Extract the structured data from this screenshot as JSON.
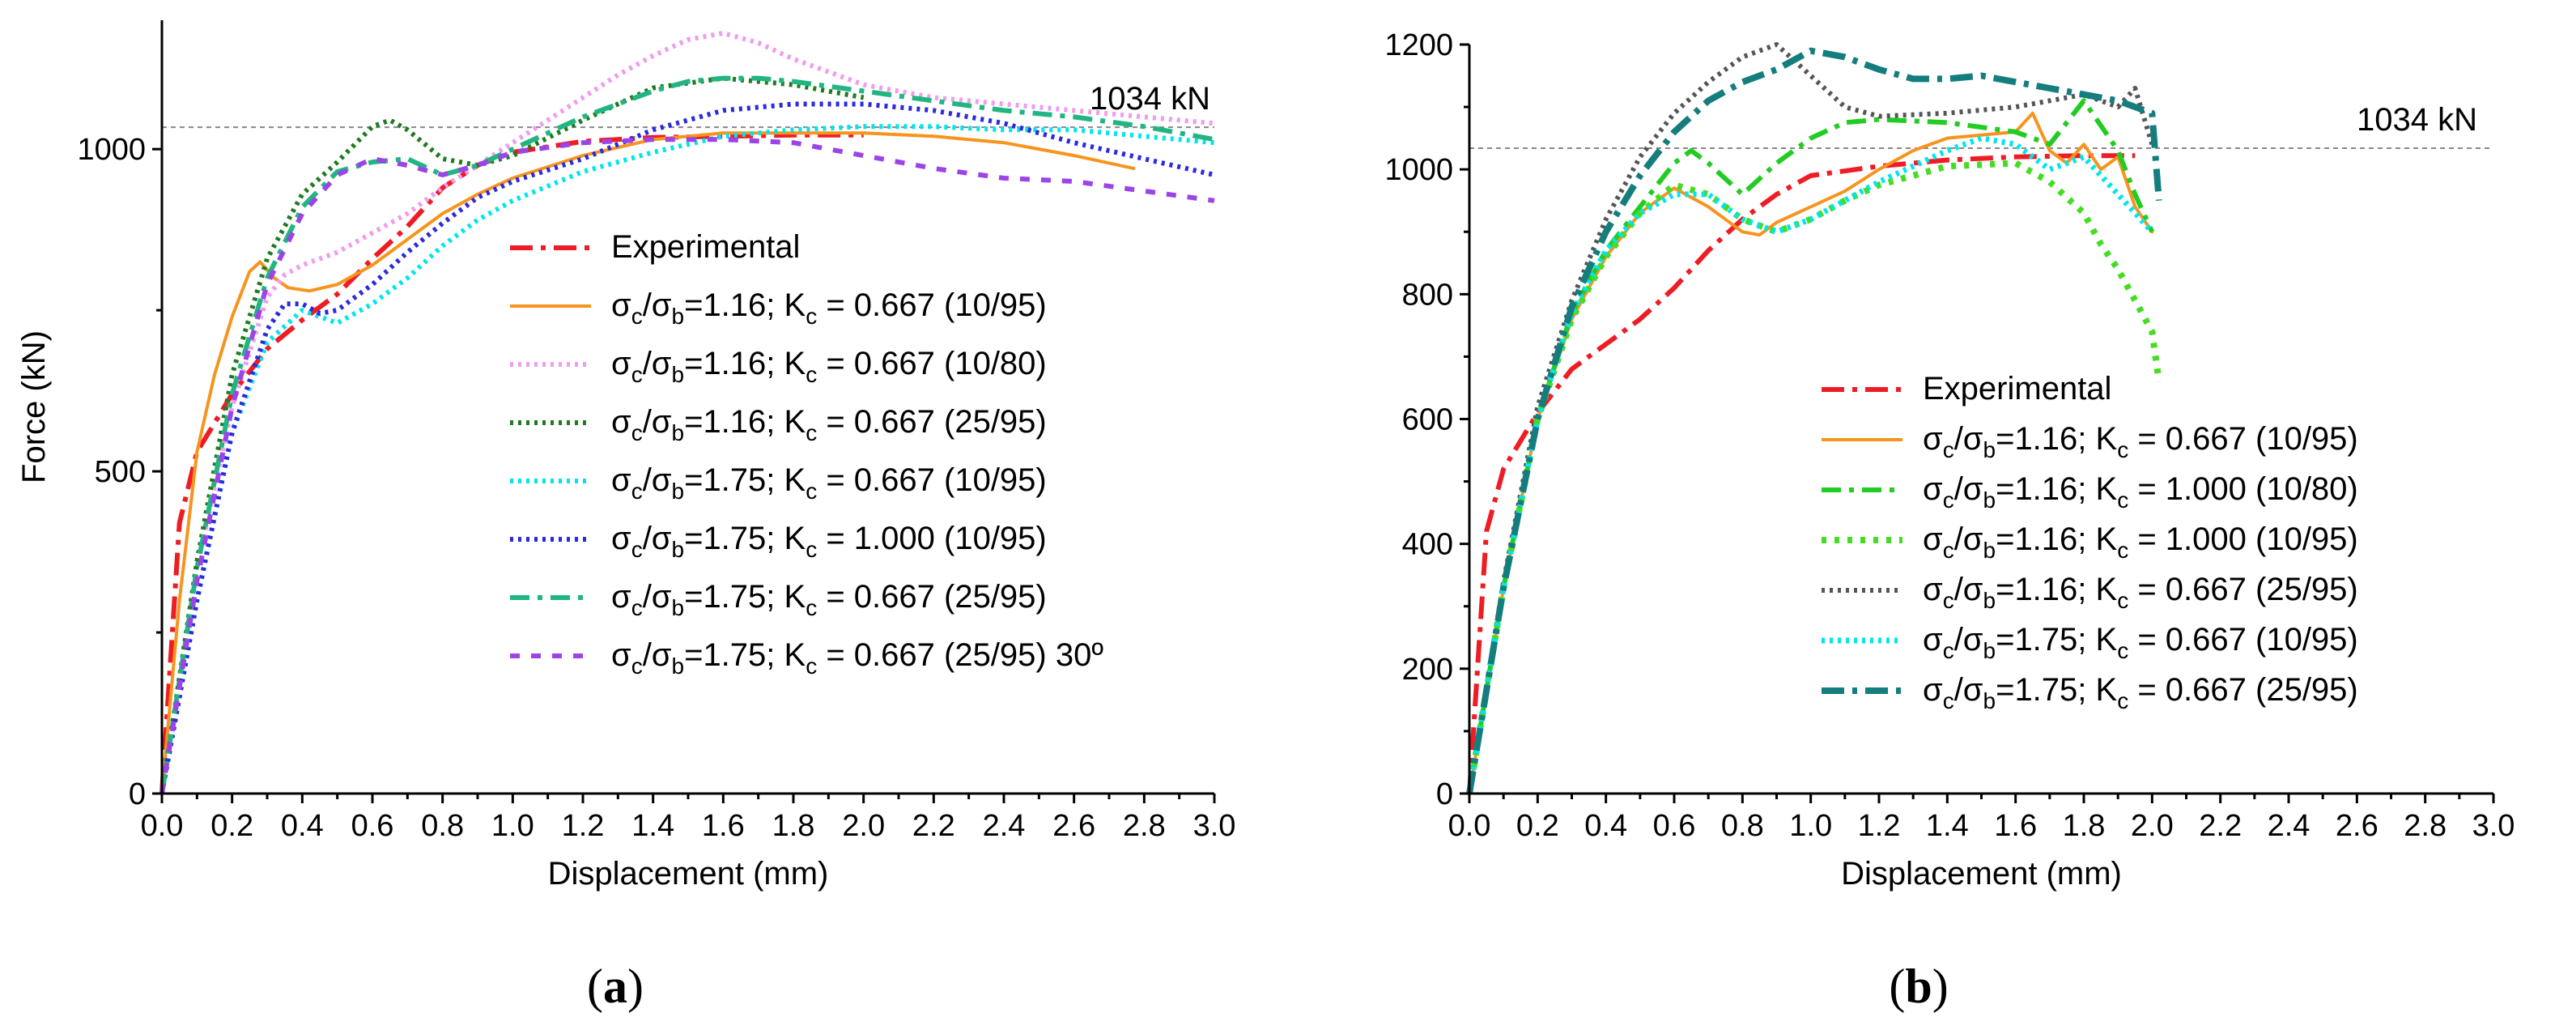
{
  "chart_data": [
    {
      "panel": "a",
      "type": "line",
      "xlabel": "Displacement (mm)",
      "ylabel": "Force (kN)",
      "xlim": [
        0,
        3.0
      ],
      "ylim": [
        0,
        1200
      ],
      "xticks": [
        0.0,
        0.2,
        0.4,
        0.6,
        0.8,
        1.0,
        1.2,
        1.4,
        1.6,
        1.8,
        2.0,
        2.2,
        2.4,
        2.6,
        2.8,
        3.0
      ],
      "xtick_labels": [
        "0.0",
        "0.2",
        "0.4",
        "0.6",
        "0.8",
        "1.0",
        "1.2",
        "1.4",
        "1.6",
        "1.8",
        "2.0",
        "2.2",
        "2.4",
        "2.6",
        "2.8",
        "3.0"
      ],
      "yticks": [
        0,
        500,
        1000
      ],
      "ytick_labels": [
        "0",
        "500",
        "1000"
      ],
      "reference_line": {
        "y": 1034,
        "label": "1034 kN"
      },
      "series": [
        {
          "name": "Experimental",
          "legend": {
            "prefix": "Experimental"
          },
          "color": "#ee1c24",
          "dash": "28,10,6,10",
          "width": 6,
          "x": [
            0,
            0.05,
            0.1,
            0.2,
            0.3,
            0.4,
            0.5,
            0.6,
            0.7,
            0.8,
            0.9,
            1.0,
            1.2,
            1.4,
            1.6,
            1.8,
            2.0
          ],
          "y": [
            0,
            420,
            530,
            620,
            690,
            735,
            775,
            830,
            880,
            940,
            975,
            995,
            1012,
            1018,
            1020,
            1022,
            1022
          ]
        },
        {
          "name": "σc/σb=1.16; Kc = 0.667 (10/95)",
          "legend": {
            "a": "1.16",
            "k": "0.667",
            "suffix": "(10/95)"
          },
          "color": "#f7941d",
          "dash": "",
          "width": 4,
          "x": [
            0,
            0.05,
            0.1,
            0.15,
            0.2,
            0.25,
            0.28,
            0.32,
            0.36,
            0.42,
            0.5,
            0.6,
            0.7,
            0.8,
            0.9,
            1.0,
            1.2,
            1.4,
            1.6,
            1.8,
            2.0,
            2.2,
            2.4,
            2.6,
            2.77
          ],
          "y": [
            0,
            300,
            530,
            650,
            740,
            810,
            825,
            800,
            785,
            780,
            790,
            820,
            860,
            900,
            930,
            955,
            990,
            1015,
            1025,
            1025,
            1025,
            1020,
            1010,
            990,
            970
          ]
        },
        {
          "name": "σc/σb=1.16; Kc = 0.667 (10/80)",
          "legend": {
            "a": "1.16",
            "k": "0.667",
            "suffix": "(10/80)"
          },
          "color": "#f09cf0",
          "dash": "4,6",
          "width": 6,
          "x": [
            0,
            0.1,
            0.2,
            0.3,
            0.35,
            0.4,
            0.5,
            0.6,
            0.7,
            0.8,
            0.9,
            1.0,
            1.1,
            1.2,
            1.3,
            1.4,
            1.5,
            1.6,
            1.7,
            1.8,
            2.0,
            2.2,
            2.4,
            2.6,
            2.8,
            3.0
          ],
          "y": [
            0,
            350,
            600,
            770,
            805,
            820,
            840,
            870,
            900,
            940,
            975,
            1010,
            1045,
            1080,
            1115,
            1145,
            1170,
            1180,
            1165,
            1140,
            1100,
            1080,
            1070,
            1060,
            1050,
            1040
          ]
        },
        {
          "name": "σc/σb=1.16; Kc = 0.667 (25/95)",
          "legend": {
            "a": "1.16",
            "k": "0.667",
            "suffix": "(25/95)"
          },
          "color": "#1e7b1e",
          "dash": "4,6",
          "width": 6,
          "x": [
            0,
            0.1,
            0.2,
            0.3,
            0.4,
            0.5,
            0.6,
            0.65,
            0.7,
            0.8,
            0.9,
            1.0,
            1.2,
            1.4,
            1.6,
            1.8,
            2.0
          ],
          "y": [
            0,
            360,
            650,
            830,
            930,
            980,
            1035,
            1045,
            1030,
            985,
            975,
            990,
            1045,
            1095,
            1110,
            1100,
            1080
          ]
        },
        {
          "name": "σc/σb=1.75; Kc = 0.667 (10/95)",
          "legend": {
            "a": "1.75",
            "k": "0.667",
            "suffix": "(10/95)"
          },
          "color": "#00e5ee",
          "dash": "4,6",
          "width": 6,
          "x": [
            0,
            0.1,
            0.2,
            0.3,
            0.4,
            0.45,
            0.5,
            0.6,
            0.7,
            0.8,
            0.9,
            1.0,
            1.2,
            1.4,
            1.6,
            1.8,
            2.0,
            2.2,
            2.4,
            2.6,
            2.8,
            3.0
          ],
          "y": [
            0,
            300,
            560,
            700,
            750,
            740,
            730,
            760,
            800,
            850,
            890,
            920,
            965,
            995,
            1020,
            1030,
            1035,
            1035,
            1030,
            1030,
            1020,
            1010
          ]
        },
        {
          "name": "σc/σb=1.75; Kc = 1.000 (10/95)",
          "legend": {
            "a": "1.75",
            "k": "1.000",
            "suffix": "(10/95)"
          },
          "color": "#2a2ae0",
          "dash": "4,6",
          "width": 6,
          "x": [
            0,
            0.1,
            0.2,
            0.3,
            0.35,
            0.4,
            0.45,
            0.5,
            0.6,
            0.7,
            0.8,
            0.9,
            1.0,
            1.2,
            1.4,
            1.6,
            1.8,
            2.0,
            2.2,
            2.4,
            2.6,
            2.8,
            3.0
          ],
          "y": [
            0,
            300,
            560,
            720,
            760,
            760,
            745,
            750,
            790,
            840,
            885,
            925,
            950,
            985,
            1030,
            1060,
            1070,
            1070,
            1060,
            1040,
            1010,
            985,
            960
          ]
        },
        {
          "name": "σc/σb=1.75; Kc = 0.667 (25/95)",
          "legend": {
            "a": "1.75",
            "k": "0.667",
            "suffix": "(25/95)"
          },
          "color": "#22b582",
          "dash": "24,10,6,10",
          "width": 6,
          "x": [
            0,
            0.1,
            0.2,
            0.3,
            0.4,
            0.5,
            0.6,
            0.7,
            0.8,
            0.9,
            1.0,
            1.2,
            1.4,
            1.5,
            1.6,
            1.7,
            1.8,
            2.0,
            2.2,
            2.4,
            2.6,
            2.8,
            3.0
          ],
          "y": [
            0,
            350,
            620,
            800,
            910,
            965,
            980,
            985,
            960,
            975,
            1000,
            1050,
            1090,
            1105,
            1110,
            1110,
            1105,
            1090,
            1075,
            1060,
            1050,
            1035,
            1015
          ]
        },
        {
          "name": "σc/σb=1.75; Kc = 0.667 (25/95) 30º",
          "legend": {
            "a": "1.75",
            "k": "0.667",
            "suffix": "(25/95) 30º"
          },
          "color": "#9b45e8",
          "dash": "12,14",
          "width": 6,
          "x": [
            0,
            0.1,
            0.2,
            0.3,
            0.4,
            0.5,
            0.6,
            0.7,
            0.8,
            0.9,
            1.0,
            1.2,
            1.4,
            1.6,
            1.8,
            2.0,
            2.2,
            2.4,
            2.6,
            2.8,
            3.0
          ],
          "y": [
            0,
            330,
            600,
            790,
            900,
            960,
            985,
            975,
            960,
            975,
            995,
            1010,
            1015,
            1015,
            1010,
            990,
            970,
            955,
            950,
            935,
            920
          ]
        }
      ]
    },
    {
      "panel": "b",
      "type": "line",
      "xlabel": "Displacement (mm)",
      "ylabel": "",
      "xlim": [
        0,
        3.0
      ],
      "ylim": [
        0,
        1200
      ],
      "xticks": [
        0.0,
        0.2,
        0.4,
        0.6,
        0.8,
        1.0,
        1.2,
        1.4,
        1.6,
        1.8,
        2.0,
        2.2,
        2.4,
        2.6,
        2.8,
        3.0
      ],
      "xtick_labels": [
        "0.0",
        "0.2",
        "0.4",
        "0.6",
        "0.8",
        "1.0",
        "1.2",
        "1.4",
        "1.6",
        "1.8",
        "2.0",
        "2.2",
        "2.4",
        "2.6",
        "2.8",
        "3.0"
      ],
      "yticks": [
        0,
        200,
        400,
        600,
        800,
        1000,
        1200
      ],
      "ytick_labels": [
        "0",
        "200",
        "400",
        "600",
        "800",
        "1000",
        "1200"
      ],
      "reference_line": {
        "y": 1034,
        "label": "1034 kN"
      },
      "series": [
        {
          "name": "Experimental",
          "legend": {
            "prefix": "Experimental"
          },
          "color": "#ee1c24",
          "dash": "28,10,6,10",
          "width": 6,
          "x": [
            0,
            0.05,
            0.1,
            0.2,
            0.3,
            0.4,
            0.5,
            0.6,
            0.7,
            0.8,
            0.9,
            1.0,
            1.2,
            1.4,
            1.6,
            1.8,
            1.95
          ],
          "y": [
            0,
            420,
            520,
            610,
            680,
            720,
            760,
            810,
            870,
            920,
            960,
            990,
            1005,
            1015,
            1020,
            1022,
            1022
          ]
        },
        {
          "name": "σc/σb=1.16; Kc = 0.667 (10/95)",
          "legend": {
            "a": "1.16",
            "k": "0.667",
            "suffix": "(10/95)"
          },
          "color": "#f7941d",
          "dash": "",
          "width": 4,
          "x": [
            0,
            0.1,
            0.2,
            0.3,
            0.4,
            0.5,
            0.6,
            0.7,
            0.8,
            0.85,
            0.9,
            1.0,
            1.1,
            1.2,
            1.3,
            1.4,
            1.5,
            1.6,
            1.65,
            1.7,
            1.75,
            1.8,
            1.85,
            1.9,
            1.95,
            2.0
          ],
          "y": [
            0,
            330,
            600,
            760,
            860,
            930,
            970,
            940,
            900,
            895,
            915,
            940,
            965,
            1000,
            1030,
            1050,
            1055,
            1060,
            1090,
            1030,
            1010,
            1040,
            1000,
            1020,
            940,
            900
          ]
        },
        {
          "name": "σc/σb=1.16; Kc = 1.000 (10/80)",
          "legend": {
            "a": "1.16",
            "k": "1.000",
            "suffix": "(10/80)"
          },
          "color": "#22cc22",
          "dash": "24,10,6,10",
          "width": 6,
          "x": [
            0,
            0.1,
            0.2,
            0.3,
            0.4,
            0.5,
            0.6,
            0.65,
            0.7,
            0.8,
            0.9,
            1.0,
            1.1,
            1.2,
            1.4,
            1.6,
            1.7,
            1.8,
            1.9,
            1.95,
            2.0
          ],
          "y": [
            0,
            330,
            600,
            770,
            870,
            940,
            1010,
            1030,
            1010,
            960,
            1010,
            1050,
            1075,
            1080,
            1075,
            1060,
            1040,
            1110,
            1030,
            960,
            900
          ]
        },
        {
          "name": "σc/σb=1.16; Kc = 1.000 (10/95)",
          "legend": {
            "a": "1.16",
            "k": "1.000",
            "suffix": "(10/95)"
          },
          "color": "#44dd22",
          "dash": "6,10",
          "width": 8,
          "x": [
            0,
            0.1,
            0.2,
            0.3,
            0.4,
            0.5,
            0.6,
            0.7,
            0.8,
            0.9,
            1.0,
            1.1,
            1.2,
            1.4,
            1.6,
            1.7,
            1.8,
            1.85,
            1.9,
            1.95,
            2.0,
            2.02
          ],
          "y": [
            0,
            330,
            600,
            760,
            860,
            930,
            975,
            960,
            920,
            900,
            920,
            950,
            975,
            1005,
            1010,
            980,
            930,
            880,
            840,
            790,
            740,
            660
          ]
        },
        {
          "name": "σc/σb=1.16; Kc = 0.667 (25/95)",
          "legend": {
            "a": "1.16",
            "k": "0.667",
            "suffix": "(25/95)"
          },
          "color": "#555555",
          "dash": "4,6",
          "width": 6,
          "x": [
            0,
            0.1,
            0.2,
            0.3,
            0.4,
            0.5,
            0.6,
            0.7,
            0.8,
            0.9,
            1.0,
            1.1,
            1.2,
            1.4,
            1.6,
            1.8,
            1.9,
            1.95,
            2.0
          ],
          "y": [
            0,
            340,
            620,
            790,
            920,
            1020,
            1090,
            1140,
            1180,
            1200,
            1150,
            1100,
            1085,
            1090,
            1100,
            1120,
            1100,
            1130,
            1040
          ]
        },
        {
          "name": "σc/σb=1.75; Kc = 0.667 (10/95)",
          "legend": {
            "a": "1.75",
            "k": "0.667",
            "suffix": "(10/95)"
          },
          "color": "#00e5ee",
          "dash": "4,6",
          "width": 7,
          "x": [
            0,
            0.1,
            0.2,
            0.3,
            0.4,
            0.5,
            0.6,
            0.7,
            0.8,
            0.9,
            1.0,
            1.1,
            1.2,
            1.4,
            1.5,
            1.6,
            1.7,
            1.8,
            1.85,
            1.9,
            1.95,
            2.0
          ],
          "y": [
            0,
            330,
            600,
            770,
            870,
            930,
            960,
            960,
            920,
            900,
            920,
            950,
            980,
            1030,
            1050,
            1040,
            1000,
            1020,
            990,
            960,
            930,
            900
          ]
        },
        {
          "name": "σc/σb=1.75; Kc = 0.667 (25/95)",
          "legend": {
            "a": "1.75",
            "k": "0.667",
            "suffix": "(25/95)"
          },
          "color": "#147d7d",
          "dash": "28,10,6,10",
          "width": 8,
          "x": [
            0,
            0.1,
            0.2,
            0.3,
            0.4,
            0.5,
            0.6,
            0.7,
            0.8,
            0.9,
            1.0,
            1.1,
            1.2,
            1.3,
            1.4,
            1.5,
            1.6,
            1.7,
            1.8,
            1.9,
            1.95,
            2.0,
            2.02
          ],
          "y": [
            0,
            330,
            600,
            780,
            900,
            990,
            1060,
            1110,
            1140,
            1160,
            1190,
            1180,
            1160,
            1145,
            1145,
            1150,
            1140,
            1130,
            1120,
            1110,
            1100,
            1090,
            950
          ]
        }
      ]
    }
  ],
  "panel_labels": [
    "(a)",
    "(b)"
  ]
}
